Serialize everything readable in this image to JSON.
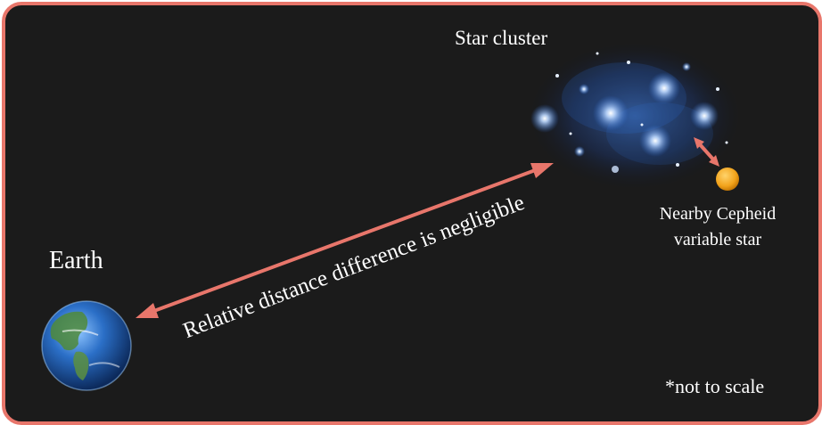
{
  "labels": {
    "star_cluster": "Star cluster",
    "earth": "Earth",
    "cepheid_line1": "Nearby Cepheid",
    "cepheid_line2": "variable star",
    "distance_note": "Relative distance difference is negligible",
    "scale_note": "*not to scale"
  },
  "colors": {
    "background": "#1b1b1b",
    "frame_border": "#e8766b",
    "arrow": "#e8766b",
    "cepheid_star": "#f2a31b",
    "cluster_glow": "#2f6fd6",
    "text": "#ffffff"
  },
  "icons": {
    "earth": "earth-globe-icon",
    "cluster": "star-cluster-image",
    "cepheid": "cepheid-star-icon"
  }
}
